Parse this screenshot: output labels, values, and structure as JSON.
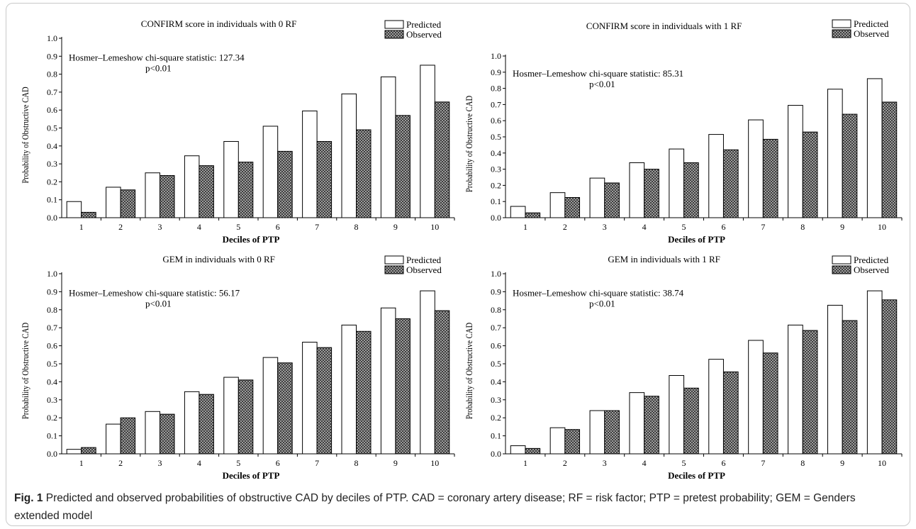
{
  "colors": {
    "predicted_fill": "#ffffff",
    "observed_fill": "#7f7f7f",
    "observed_pattern": "crosshatch",
    "bar_stroke": "#000000",
    "caption_text": "#222222"
  },
  "caption": {
    "label": "Fig. 1",
    "text": "Predicted and observed probabilities of obstructive CAD by deciles of PTP. CAD = coronary artery disease; RF = risk factor; PTP = pretest probability; GEM = Genders extended model"
  },
  "chart_data": [
    {
      "type": "bar",
      "title": "CONFIRM score in individuals with 0 RF",
      "xlabel": "Deciles of PTP",
      "ylabel": "Probability of Obstructive CAD",
      "ylim": [
        0,
        1.0
      ],
      "yticks": [
        "0.0",
        "0.1",
        "0.2",
        "0.3",
        "0.4",
        "0.5",
        "0.6",
        "0.7",
        "0.8",
        "0.9",
        "1.0"
      ],
      "categories": [
        "1",
        "2",
        "3",
        "4",
        "5",
        "6",
        "7",
        "8",
        "9",
        "10"
      ],
      "legend_position": "top-right",
      "annotation": {
        "stat": "Hosmer–Lemeshow chi-square statistic: 127.34",
        "p": "p<0.01"
      },
      "series": [
        {
          "name": "Predicted",
          "values": [
            0.09,
            0.17,
            0.25,
            0.345,
            0.425,
            0.51,
            0.595,
            0.69,
            0.785,
            0.85
          ]
        },
        {
          "name": "Observed",
          "values": [
            0.03,
            0.155,
            0.235,
            0.29,
            0.31,
            0.37,
            0.425,
            0.49,
            0.57,
            0.645
          ]
        }
      ]
    },
    {
      "type": "bar",
      "title": "CONFIRM score in individuals with 1 RF",
      "xlabel": "Deciles of PTP",
      "ylabel": "Probability of Obstructive CAD",
      "ylim": [
        0,
        1.0
      ],
      "yticks": [
        "0.0",
        "0.1",
        "0.2",
        "0.3",
        "0.4",
        "0.5",
        "0.6",
        "0.7",
        "0.8",
        "0.9",
        "1.0"
      ],
      "categories": [
        "1",
        "2",
        "3",
        "4",
        "5",
        "6",
        "7",
        "8",
        "9",
        "10"
      ],
      "legend_position": "top-right",
      "annotation": {
        "stat": "Hosmer–Lemeshow chi-square statistic: 85.31",
        "p": "p<0.01"
      },
      "series": [
        {
          "name": "Predicted",
          "values": [
            0.07,
            0.155,
            0.245,
            0.34,
            0.425,
            0.515,
            0.605,
            0.695,
            0.795,
            0.86
          ]
        },
        {
          "name": "Observed",
          "values": [
            0.03,
            0.125,
            0.215,
            0.3,
            0.34,
            0.42,
            0.485,
            0.53,
            0.64,
            0.715
          ]
        }
      ]
    },
    {
      "type": "bar",
      "title": "GEM in individuals with 0 RF",
      "xlabel": "Deciles of PTP",
      "ylabel": "Probability of Obstructive CAD",
      "ylim": [
        0,
        1.0
      ],
      "yticks": [
        "0.0",
        "0.1",
        "0.2",
        "0.3",
        "0.4",
        "0.5",
        "0.6",
        "0.7",
        "0.8",
        "0.9",
        "1.0"
      ],
      "categories": [
        "1",
        "2",
        "3",
        "4",
        "5",
        "6",
        "7",
        "8",
        "9",
        "10"
      ],
      "legend_position": "top-right",
      "annotation": {
        "stat": "Hosmer–Lemeshow chi-square statistic: 56.17",
        "p": "p<0.01"
      },
      "series": [
        {
          "name": "Predicted",
          "values": [
            0.025,
            0.165,
            0.235,
            0.345,
            0.425,
            0.535,
            0.62,
            0.715,
            0.81,
            0.905
          ]
        },
        {
          "name": "Observed",
          "values": [
            0.035,
            0.2,
            0.22,
            0.33,
            0.41,
            0.505,
            0.59,
            0.68,
            0.75,
            0.795
          ]
        }
      ]
    },
    {
      "type": "bar",
      "title": "GEM in individuals with 1 RF",
      "xlabel": "Deciles of PTP",
      "ylabel": "Probability of Obstructive CAD",
      "ylim": [
        0,
        1.0
      ],
      "yticks": [
        "0.0",
        "0.1",
        "0.2",
        "0.3",
        "0.4",
        "0.5",
        "0.6",
        "0.7",
        "0.8",
        "0.9",
        "1.0"
      ],
      "categories": [
        "1",
        "2",
        "3",
        "4",
        "5",
        "6",
        "7",
        "8",
        "9",
        "10"
      ],
      "legend_position": "top-right",
      "annotation": {
        "stat": "Hosmer–Lemeshow chi-square statistic: 38.74",
        "p": "p<0.01"
      },
      "series": [
        {
          "name": "Predicted",
          "values": [
            0.045,
            0.145,
            0.24,
            0.34,
            0.435,
            0.525,
            0.63,
            0.715,
            0.825,
            0.905
          ]
        },
        {
          "name": "Observed",
          "values": [
            0.03,
            0.135,
            0.24,
            0.32,
            0.365,
            0.455,
            0.56,
            0.685,
            0.74,
            0.855
          ]
        }
      ]
    }
  ]
}
